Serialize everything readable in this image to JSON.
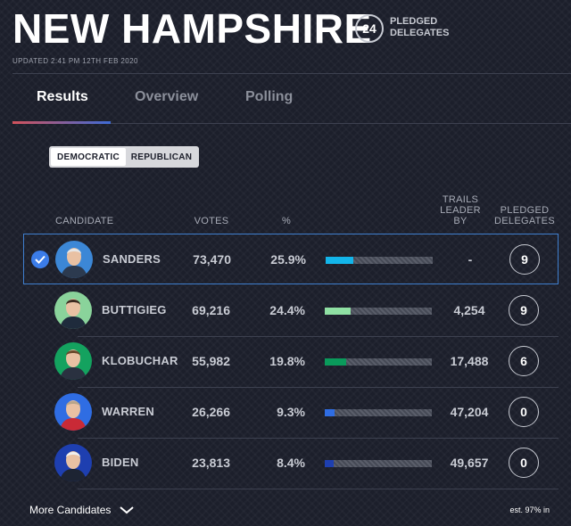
{
  "header": {
    "state": "NEW HAMPSHIRE",
    "delegates_count": "24",
    "delegates_label_line1": "PLEDGED",
    "delegates_label_line2": "DELEGATES",
    "updated": "UPDATED 2:41 PM 12TH FEB 2020"
  },
  "tabs": [
    {
      "label": "Results",
      "active": true
    },
    {
      "label": "Overview",
      "active": false
    },
    {
      "label": "Polling",
      "active": false
    }
  ],
  "party_toggle": {
    "democratic": "DEMOCRATIC",
    "republican": "REPUBLICAN",
    "selected": "DEMOCRATIC"
  },
  "columns": {
    "candidate": "CANDIDATE",
    "votes": "VOTES",
    "pct": "%",
    "trails_line1": "TRAILS",
    "trails_line2": "LEADER",
    "trails_line3": "BY",
    "pledged_line1": "PLEDGED",
    "pledged_line2": "DELEGATES"
  },
  "candidates": [
    {
      "name": "SANDERS",
      "votes": "73,470",
      "pct": "25.9%",
      "bar_fraction": 0.259,
      "bar_color": "#13b5ea",
      "trails": "-",
      "delegates": "9",
      "leader": true,
      "portrait_bg": "#3c87d6",
      "hair": "#e7e7e7",
      "suit": "#2c3a4f"
    },
    {
      "name": "BUTTIGIEG",
      "votes": "69,216",
      "pct": "24.4%",
      "bar_fraction": 0.244,
      "bar_color": "#8fe0a3",
      "trails": "4,254",
      "delegates": "9",
      "leader": false,
      "portrait_bg": "#8ad39b",
      "hair": "#3b2a20",
      "suit": "#1f2b3c"
    },
    {
      "name": "KLOBUCHAR",
      "votes": "55,982",
      "pct": "19.8%",
      "bar_fraction": 0.198,
      "bar_color": "#0a9a5b",
      "trails": "17,488",
      "delegates": "6",
      "leader": false,
      "portrait_bg": "#14a25f",
      "hair": "#6a4a2c",
      "suit": "#2a3140"
    },
    {
      "name": "WARREN",
      "votes": "26,266",
      "pct": "9.3%",
      "bar_fraction": 0.093,
      "bar_color": "#2f6de3",
      "trails": "47,204",
      "delegates": "0",
      "leader": false,
      "portrait_bg": "#2f6de3",
      "hair": "#b8a58b",
      "suit": "#c92a36"
    },
    {
      "name": "BIDEN",
      "votes": "23,813",
      "pct": "8.4%",
      "bar_fraction": 0.084,
      "bar_color": "#1e3fb0",
      "trails": "49,657",
      "delegates": "0",
      "leader": false,
      "portrait_bg": "#1e3fb0",
      "hair": "#f0f0f0",
      "suit": "#1d2433"
    }
  ],
  "footer": {
    "more_label": "More Candidates",
    "est": "est. 97% in"
  },
  "icons": {
    "check": "check-icon",
    "chevron": "chevron-down-icon"
  }
}
